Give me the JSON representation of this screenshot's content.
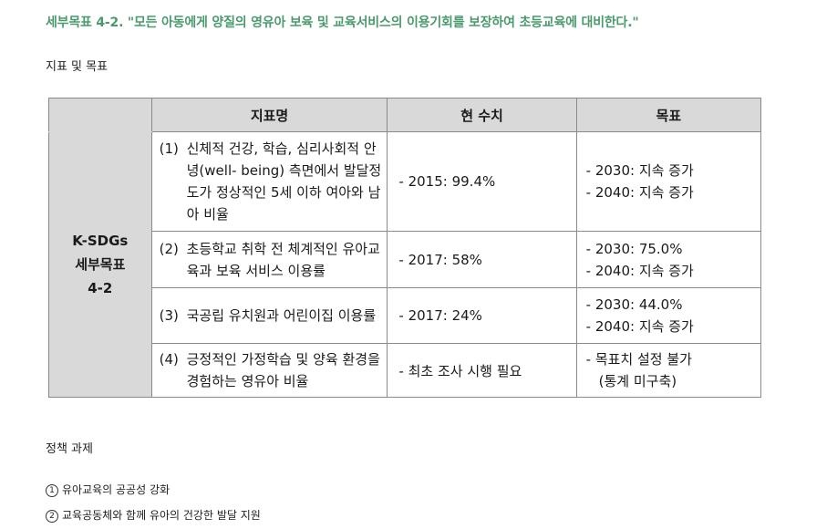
{
  "heading": "세부목표 4-2. \"모든 아동에게 양질의 영유아 보육 및 교육서비스의 이용기회를 보장하여 초등교육에 대비한다.\"",
  "subheading": "지표 및 목표",
  "table": {
    "headers": [
      "지표명",
      "현 수치",
      "목표"
    ],
    "row_header": [
      "K-SDGs",
      "세부목표",
      "4-2"
    ],
    "rows": [
      {
        "num": "(1)",
        "name": "신체적 건강, 학습, 심리사회적 안녕(well- being) 측면에서 발달정도가 정상적인 5세 이하 여아와 남아 비율",
        "current": "- 2015: 99.4%",
        "goals": [
          "- 2030: 지속 증가",
          "- 2040: 지속 증가"
        ]
      },
      {
        "num": "(2)",
        "name": "초등학교 취학 전 체계적인 유아교육과 보육 서비스 이용률",
        "current": "- 2017: 58%",
        "goals": [
          "- 2030: 75.0%",
          "- 2040: 지속 증가"
        ]
      },
      {
        "num": "(3)",
        "name": "국공립 유치원과 어린이집 이용률",
        "current": "- 2017: 24%",
        "goals": [
          "- 2030: 44.0%",
          "- 2040: 지속 증가"
        ]
      },
      {
        "num": "(4)",
        "name": "긍정적인 가정학습 및 양육 환경을 경험하는 영유아 비율",
        "current": "- 최초 조사 시행 필요",
        "goals": [
          "- 목표치 설정 불가",
          "(통계 미구축)"
        ]
      }
    ]
  },
  "policy_heading": "정책 과제",
  "tasks": [
    {
      "num": "1",
      "text": "유아교육의 공공성 강화"
    },
    {
      "num": "2",
      "text": "교육공동체와 함께 유아의 건강한 발달 지원"
    }
  ]
}
